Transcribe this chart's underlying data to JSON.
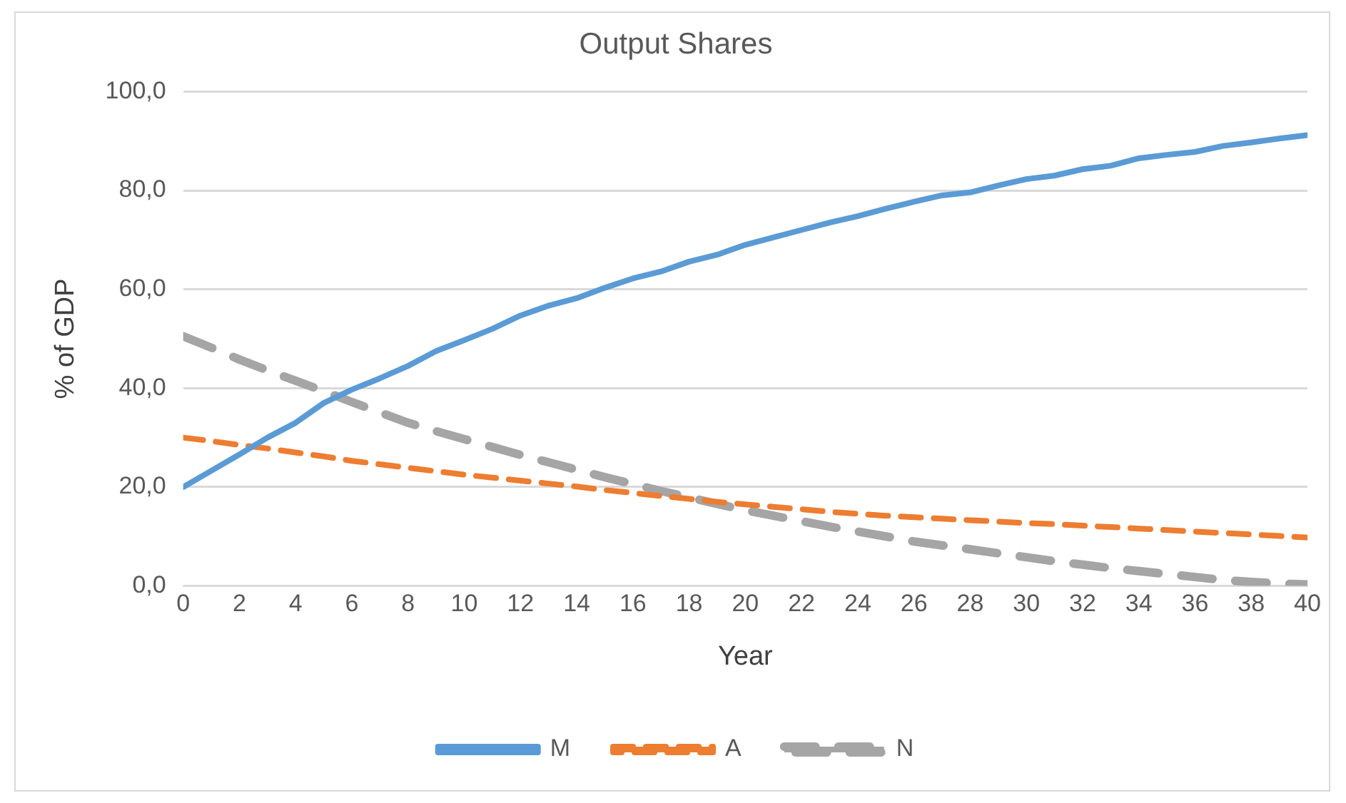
{
  "chart_data": {
    "type": "line",
    "title": "Output Shares",
    "xlabel": "Year",
    "ylabel": "% of GDP",
    "x": [
      0,
      1,
      2,
      3,
      4,
      5,
      6,
      7,
      8,
      9,
      10,
      11,
      12,
      13,
      14,
      15,
      16,
      17,
      18,
      19,
      20,
      21,
      22,
      23,
      24,
      25,
      26,
      27,
      28,
      29,
      30,
      31,
      32,
      33,
      34,
      35,
      36,
      37,
      38,
      39,
      40
    ],
    "xlim": [
      0,
      40
    ],
    "xticks": [
      0,
      2,
      4,
      6,
      8,
      10,
      12,
      14,
      16,
      18,
      20,
      22,
      24,
      26,
      28,
      30,
      32,
      34,
      36,
      38,
      40
    ],
    "ylim": [
      0,
      100
    ],
    "yticks": [
      {
        "value": 0,
        "label": "0,0"
      },
      {
        "value": 20,
        "label": "20,0"
      },
      {
        "value": 40,
        "label": "40,0"
      },
      {
        "value": 60,
        "label": "60,0"
      },
      {
        "value": 80,
        "label": "80,0"
      },
      {
        "value": 100,
        "label": "100,0"
      }
    ],
    "grid": "y",
    "legend": "bottom",
    "marker": "none",
    "series": [
      {
        "name": "M",
        "color": "#5b9bd5",
        "line_style": "solid",
        "values": [
          20,
          23.3,
          26.6,
          30,
          33,
          37,
          39.7,
          42,
          44.5,
          47.5,
          49.7,
          52,
          54.7,
          56.7,
          58.2,
          60.3,
          62.2,
          63.6,
          65.6,
          67,
          69,
          70.5,
          72,
          73.5,
          74.8,
          76.3,
          77.7,
          79,
          79.6,
          81,
          82.3,
          83,
          84.3,
          85,
          86.5,
          87.2,
          87.8,
          89,
          89.7,
          90.5,
          91.2
        ]
      },
      {
        "name": "A",
        "color": "#ed7d31",
        "line_style": "dashed",
        "values": [
          30,
          29.3,
          28.5,
          27.8,
          27,
          26.2,
          25.3,
          24.6,
          23.9,
          23.2,
          22.5,
          21.9,
          21.3,
          20.7,
          20.1,
          19.4,
          18.8,
          18.2,
          17.6,
          17,
          16.5,
          16,
          15.5,
          15,
          14.6,
          14.2,
          13.9,
          13.6,
          13.3,
          13,
          12.7,
          12.5,
          12.2,
          11.9,
          11.6,
          11.3,
          11,
          10.7,
          10.4,
          10.1,
          9.8
        ]
      },
      {
        "name": "N",
        "color": "#a5a5a5",
        "line_style": "dashed",
        "values": [
          50.5,
          48.2,
          45.8,
          43.6,
          41.5,
          39.4,
          37.2,
          35.1,
          33,
          31.3,
          29.7,
          28.1,
          26.5,
          25,
          23.5,
          22,
          20.6,
          19.2,
          17.9,
          16.6,
          15.3,
          14.2,
          13.1,
          12,
          11,
          10,
          9,
          8.2,
          7.4,
          6.6,
          5.8,
          5,
          4.3,
          3.6,
          3,
          2.4,
          1.8,
          1.2,
          0.8,
          0.5,
          0.3
        ]
      }
    ]
  }
}
